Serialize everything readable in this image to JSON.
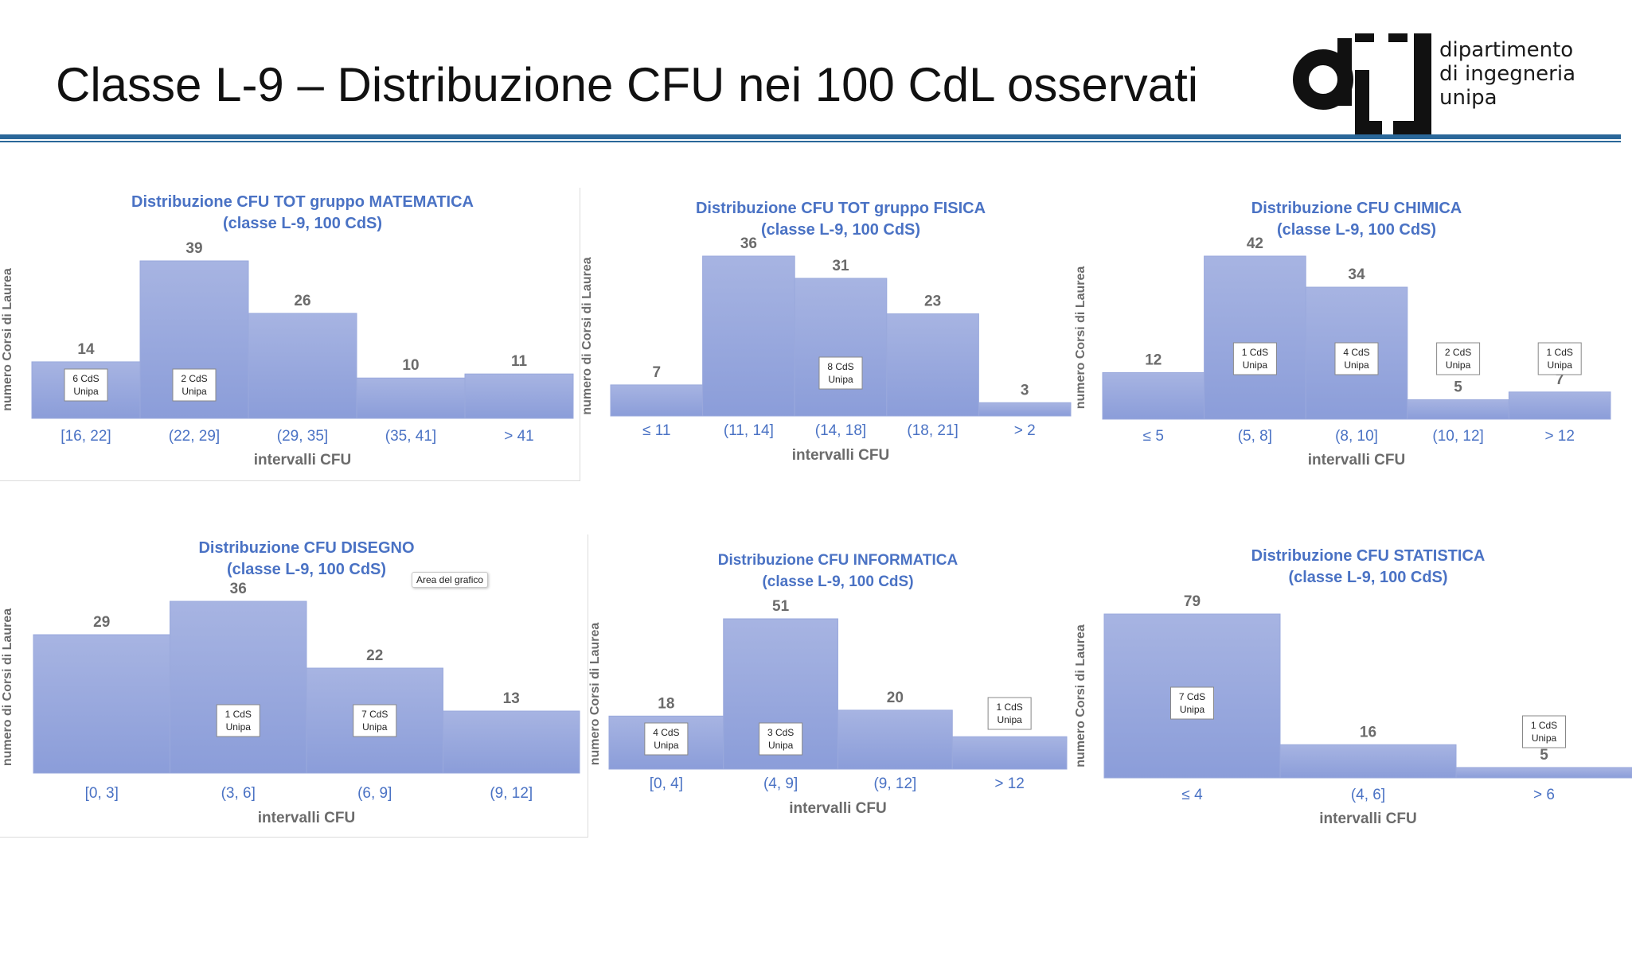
{
  "slide": {
    "title": "Classe L-9 – Distribuzione CFU nei 100 CdL osservati",
    "logo_lines": [
      "dipartimento",
      "di ingegneria",
      "unipa"
    ],
    "accent_color": "#2a6799"
  },
  "style": {
    "bar_top": "#a7b4e2",
    "bar_bottom": "#8b9dd9",
    "title_color": "#4a72c4",
    "tick_color": "#4a72c4",
    "value_color": "#6b6b6b"
  },
  "tooltip": "Area del grafico",
  "chart_data": [
    {
      "type": "bar",
      "title": "Distribuzione CFU TOT gruppo MATEMATICA",
      "subtitle": "(classe L-9, 100 CdS)",
      "xlabel": "intervalli CFU",
      "ylabel": "numero Corsi di Laurea",
      "categories": [
        "[16, 22]",
        "(22, 29]",
        "(29, 35]",
        "(35, 41]",
        "> 41"
      ],
      "values": [
        14,
        39,
        26,
        10,
        11
      ],
      "ylim": [
        0,
        39
      ],
      "notes": [
        {
          "index": 0,
          "lines": [
            "6 CdS",
            "Unipa"
          ]
        },
        {
          "index": 1,
          "lines": [
            "2 CdS",
            "Unipa"
          ]
        }
      ]
    },
    {
      "type": "bar",
      "title": "Distribuzione CFU TOT gruppo FISICA",
      "subtitle": "(classe L-9, 100 CdS)",
      "xlabel": "intervalli CFU",
      "ylabel": "numero di Corsi di Laurea",
      "categories": [
        "≤ 11",
        "(11, 14]",
        "(14, 18]",
        "(18, 21]",
        "> 2"
      ],
      "values": [
        7,
        36,
        31,
        23,
        3
      ],
      "ylim": [
        0,
        36
      ],
      "notes": [
        {
          "index": 2,
          "lines": [
            "8 CdS",
            "Unipa"
          ]
        }
      ]
    },
    {
      "type": "bar",
      "title": "Distribuzione CFU  CHIMICA",
      "subtitle": "(classe L-9, 100 CdS)",
      "xlabel": "intervalli CFU",
      "ylabel": "numero Corsi di Laurea",
      "categories": [
        "≤ 5",
        "(5, 8]",
        "(8, 10]",
        "(10, 12]",
        "> 12"
      ],
      "values": [
        12,
        42,
        34,
        5,
        7
      ],
      "ylim": [
        0,
        42
      ],
      "notes": [
        {
          "index": 1,
          "lines": [
            "1 CdS",
            "Unipa"
          ]
        },
        {
          "index": 2,
          "lines": [
            "4 CdS",
            "Unipa"
          ]
        },
        {
          "index": 3,
          "lines": [
            "2 CdS",
            "Unipa"
          ]
        },
        {
          "index": 4,
          "lines": [
            "1 CdS",
            "Unipa"
          ]
        }
      ]
    },
    {
      "type": "bar",
      "title": "Distribuzione CFU  DISEGNO",
      "subtitle": "(classe L-9, 100 CdS)",
      "xlabel": "intervalli CFU",
      "ylabel": "numero di Corsi di Laurea",
      "categories": [
        "[0, 3]",
        "(3, 6]",
        "(6, 9]",
        "(9, 12]"
      ],
      "values": [
        29,
        36,
        22,
        13
      ],
      "ylim": [
        0,
        36
      ],
      "notes": [
        {
          "index": 1,
          "lines": [
            "1 CdS",
            "Unipa"
          ]
        },
        {
          "index": 2,
          "lines": [
            "7 CdS",
            "Unipa"
          ]
        }
      ]
    },
    {
      "type": "bar",
      "title": "Distribuzione CFU  INFORMATICA",
      "subtitle": "(classe L-9, 100 CdS)",
      "xlabel": "intervalli CFU",
      "ylabel": "numero Corsi di Laurea",
      "categories": [
        "[0, 4]",
        "(4, 9]",
        "(9, 12]",
        "> 12"
      ],
      "values": [
        18,
        51,
        20,
        11
      ],
      "ylim": [
        0,
        51
      ],
      "notes": [
        {
          "index": 0,
          "lines": [
            "4 CdS",
            "Unipa"
          ]
        },
        {
          "index": 1,
          "lines": [
            "3 CdS",
            "Unipa"
          ]
        },
        {
          "index": 3,
          "lines": [
            "1 CdS",
            "Unipa"
          ]
        }
      ]
    },
    {
      "type": "bar",
      "title": "Distribuzione CFU  STATISTICA",
      "subtitle": "(classe L-9, 100 CdS)",
      "xlabel": "intervalli CFU",
      "ylabel": "numero Corsi di Laurea",
      "categories": [
        "≤ 4",
        "(4, 6]",
        "> 6"
      ],
      "values": [
        79,
        16,
        5
      ],
      "ylim": [
        0,
        79
      ],
      "notes": [
        {
          "index": 0,
          "lines": [
            "7 CdS",
            "Unipa"
          ]
        },
        {
          "index": 2,
          "lines": [
            "1 CdS",
            "Unipa"
          ]
        }
      ]
    }
  ]
}
